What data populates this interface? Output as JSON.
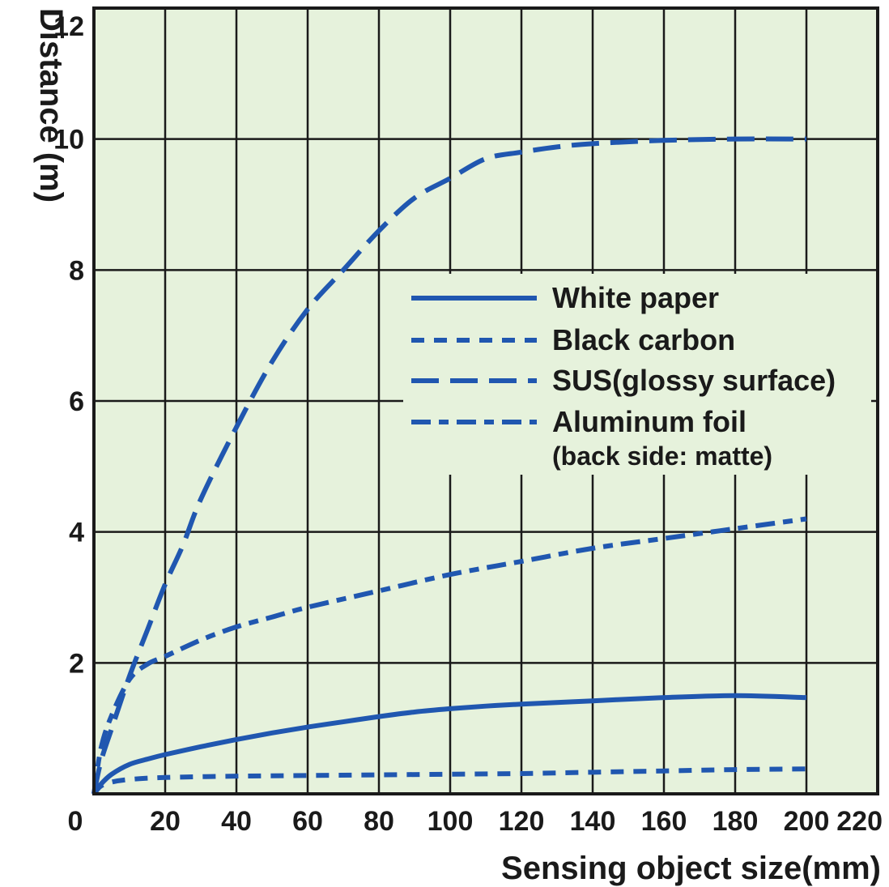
{
  "chart_data": {
    "type": "line",
    "xlabel": "Sensing object size(mm)",
    "ylabel": "Distance (m)",
    "xlim": [
      0,
      220
    ],
    "ylim": [
      0,
      12
    ],
    "x_ticks": [
      0,
      20,
      40,
      60,
      80,
      100,
      120,
      140,
      160,
      180,
      200,
      220
    ],
    "y_ticks": [
      2,
      4,
      6,
      8,
      10,
      12
    ],
    "grid": true,
    "legend_position": "center-right",
    "colors": {
      "plot_background": "#e6f2dc",
      "grid": "#1a1a1a",
      "series": "#2057b0"
    },
    "series": [
      {
        "name": "White paper",
        "dash": "solid",
        "x": [
          0,
          2,
          5,
          10,
          15,
          20,
          30,
          40,
          50,
          60,
          70,
          80,
          90,
          100,
          110,
          120,
          140,
          160,
          180,
          200
        ],
        "y": [
          0,
          0.15,
          0.3,
          0.45,
          0.53,
          0.6,
          0.72,
          0.83,
          0.93,
          1.02,
          1.1,
          1.18,
          1.25,
          1.3,
          1.34,
          1.37,
          1.42,
          1.47,
          1.5,
          1.47
        ]
      },
      {
        "name": "Black carbon",
        "dash": "short",
        "x": [
          0,
          2,
          5,
          10,
          20,
          40,
          60,
          80,
          100,
          120,
          140,
          160,
          180,
          200
        ],
        "y": [
          0,
          0.12,
          0.18,
          0.22,
          0.25,
          0.27,
          0.28,
          0.29,
          0.3,
          0.31,
          0.33,
          0.35,
          0.37,
          0.38
        ]
      },
      {
        "name": "SUS(glossy surface)",
        "dash": "long",
        "x": [
          0,
          2,
          5,
          10,
          15,
          20,
          25,
          30,
          40,
          50,
          60,
          70,
          80,
          90,
          100,
          110,
          120,
          130,
          140,
          160,
          180,
          200
        ],
        "y": [
          0,
          0.5,
          1.0,
          1.8,
          2.5,
          3.2,
          3.8,
          4.5,
          5.6,
          6.6,
          7.4,
          8.0,
          8.6,
          9.1,
          9.4,
          9.7,
          9.8,
          9.88,
          9.93,
          9.98,
          10.0,
          10.0
        ]
      },
      {
        "name": "Aluminum foil",
        "name_note": "(back side: matte)",
        "dash": "dashdot",
        "x": [
          0,
          2,
          5,
          10,
          15,
          20,
          30,
          40,
          50,
          60,
          80,
          100,
          120,
          140,
          160,
          180,
          200
        ],
        "y": [
          0,
          0.7,
          1.2,
          1.75,
          1.98,
          2.1,
          2.35,
          2.55,
          2.7,
          2.85,
          3.1,
          3.35,
          3.55,
          3.75,
          3.9,
          4.05,
          4.2
        ]
      }
    ]
  }
}
